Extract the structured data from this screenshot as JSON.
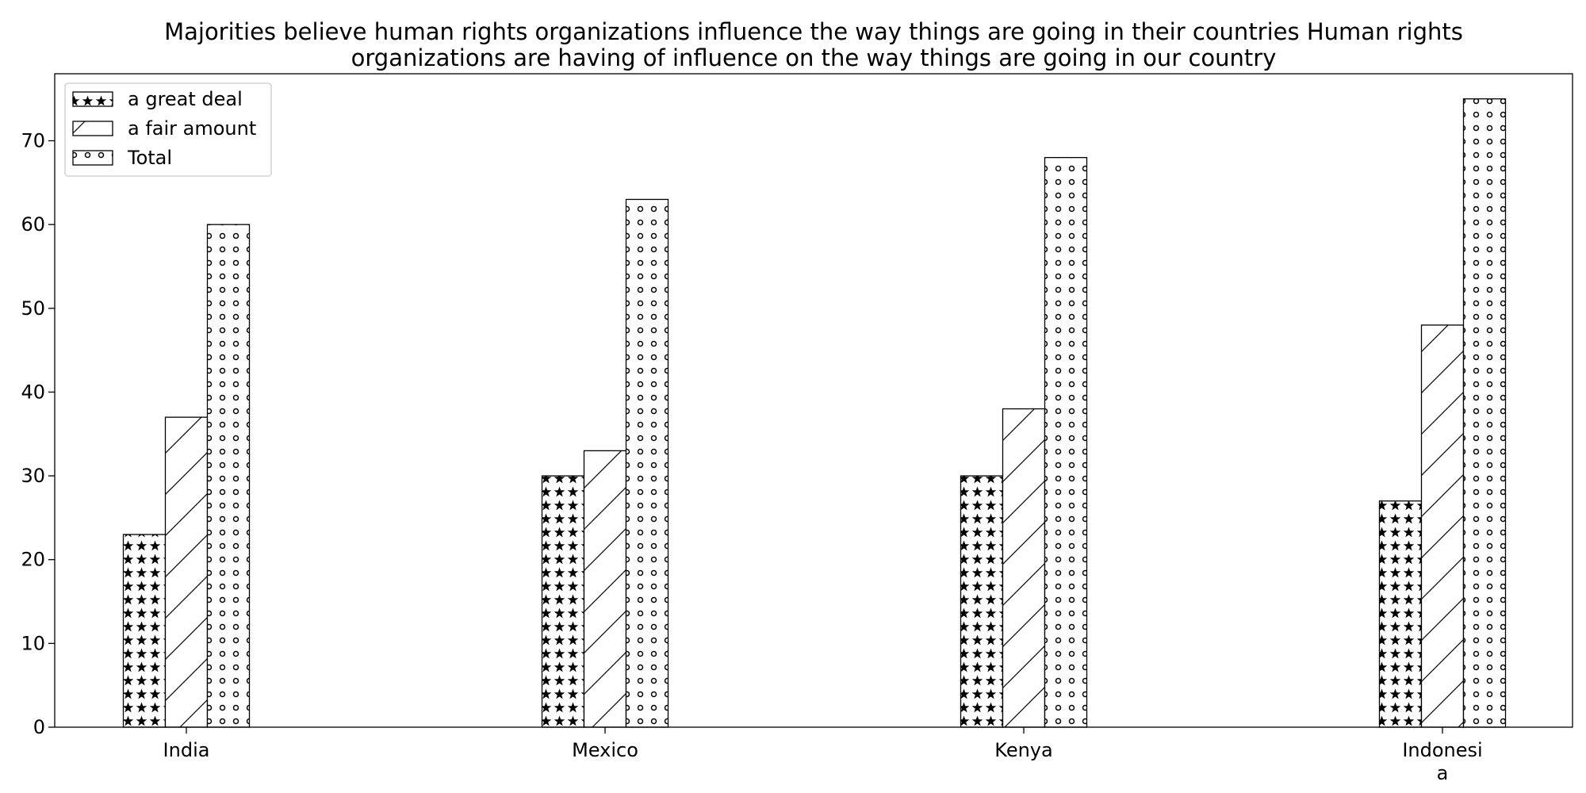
{
  "chart_data": {
    "type": "bar",
    "title": "Majorities believe human rights organizations influence the way things are going in their countries Human rights organizations are having of influence on the way things are going in our country",
    "title_lines": [
      "Majorities believe human rights organizations influence the way things are going in their countries Human rights",
      "organizations are having of influence on the way things are going in our country"
    ],
    "xlabel": "",
    "ylabel": "",
    "categories": [
      "India",
      "Mexico",
      "Kenya",
      "Indonesia"
    ],
    "category_label_lines": [
      [
        "India"
      ],
      [
        "Mexico"
      ],
      [
        "Kenya"
      ],
      [
        "Indonesi",
        "a"
      ]
    ],
    "series": [
      {
        "name": "a great deal",
        "values": [
          23,
          30,
          30,
          27
        ],
        "pattern": "stars"
      },
      {
        "name": "a fair amount",
        "values": [
          37,
          33,
          38,
          48
        ],
        "pattern": "diagonal"
      },
      {
        "name": "Total",
        "values": [
          60,
          63,
          68,
          75
        ],
        "pattern": "circles"
      }
    ],
    "ylim": [
      0,
      78
    ],
    "yticks": [
      0,
      10,
      20,
      30,
      40,
      50,
      60,
      70
    ],
    "grid": false,
    "legend_position": "top-left",
    "colors": {
      "bar_fill": "#ffffff",
      "bar_edge": "#000000",
      "text": "#000000"
    }
  }
}
